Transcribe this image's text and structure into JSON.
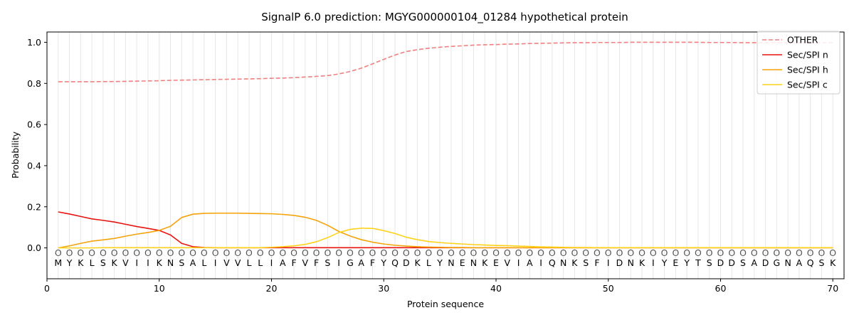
{
  "chart_data": {
    "type": "line",
    "title": "SignalP 6.0 prediction: MGYG000000104_01284 hypothetical protein",
    "xlabel": "Protein sequence",
    "ylabel": "Probability",
    "xlim": [
      0,
      71
    ],
    "ylim": [
      -0.15,
      1.05
    ],
    "x_ticks": [
      0,
      10,
      20,
      30,
      40,
      50,
      60,
      70
    ],
    "y_ticks": [
      0.0,
      0.2,
      0.4,
      0.6,
      0.8,
      1.0
    ],
    "x_tick_labels": [
      "0",
      "10",
      "20",
      "30",
      "40",
      "50",
      "60",
      "70"
    ],
    "y_tick_labels": [
      "0.0",
      "0.2",
      "0.4",
      "0.6",
      "0.8",
      "1.0"
    ],
    "grid": "vertical lines at each residue",
    "legend_position": "top-right",
    "sequence": [
      "M",
      "Y",
      "K",
      "L",
      "S",
      "K",
      "V",
      "I",
      "I",
      "K",
      "N",
      "S",
      "A",
      "L",
      "I",
      "V",
      "V",
      "L",
      "L",
      "I",
      "A",
      "F",
      "V",
      "F",
      "S",
      "I",
      "G",
      "A",
      "F",
      "Y",
      "Q",
      "D",
      "K",
      "L",
      "Y",
      "N",
      "E",
      "N",
      "K",
      "E",
      "V",
      "I",
      "A",
      "I",
      "Q",
      "N",
      "K",
      "S",
      "F",
      "I",
      "D",
      "N",
      "K",
      "I",
      "Y",
      "E",
      "Y",
      "T",
      "S",
      "D",
      "D",
      "S",
      "A",
      "D",
      "G",
      "N",
      "A",
      "Q",
      "S",
      "K"
    ],
    "predicted_labels": [
      "O",
      "O",
      "O",
      "O",
      "O",
      "O",
      "O",
      "O",
      "O",
      "O",
      "O",
      "O",
      "O",
      "O",
      "O",
      "O",
      "O",
      "O",
      "O",
      "O",
      "O",
      "O",
      "O",
      "O",
      "O",
      "O",
      "O",
      "O",
      "O",
      "O",
      "O",
      "O",
      "O",
      "O",
      "O",
      "O",
      "O",
      "O",
      "O",
      "O",
      "O",
      "O",
      "O",
      "O",
      "O",
      "O",
      "O",
      "O",
      "O",
      "O",
      "O",
      "O",
      "O",
      "O",
      "O",
      "O",
      "O",
      "O",
      "O",
      "O",
      "O",
      "O",
      "O",
      "O",
      "O",
      "O",
      "O",
      "O",
      "O",
      "O"
    ],
    "series": [
      {
        "name": "OTHER",
        "color": "#f08080",
        "dashed": true,
        "values": [
          0.808,
          0.808,
          0.808,
          0.808,
          0.809,
          0.809,
          0.81,
          0.811,
          0.812,
          0.813,
          0.815,
          0.816,
          0.817,
          0.818,
          0.819,
          0.82,
          0.821,
          0.822,
          0.823,
          0.825,
          0.826,
          0.828,
          0.831,
          0.834,
          0.838,
          0.846,
          0.858,
          0.874,
          0.895,
          0.917,
          0.938,
          0.955,
          0.964,
          0.971,
          0.976,
          0.98,
          0.983,
          0.986,
          0.988,
          0.989,
          0.991,
          0.992,
          0.994,
          0.995,
          0.996,
          0.997,
          0.998,
          0.998,
          0.999,
          0.999,
          0.999,
          1.0,
          1.0,
          1.0,
          1.0,
          1.0,
          1.0,
          1.0,
          0.999,
          0.999,
          0.999,
          0.998,
          0.998,
          0.998,
          0.998,
          0.998,
          0.998,
          0.998,
          0.998,
          0.998
        ]
      },
      {
        "name": "Sec/SPI n",
        "color": "#e8140f",
        "dashed": false,
        "values": [
          0.175,
          0.165,
          0.153,
          0.141,
          0.134,
          0.126,
          0.115,
          0.104,
          0.095,
          0.085,
          0.063,
          0.022,
          0.006,
          0.002,
          0.001,
          0.001,
          0.001,
          0.001,
          0.001,
          0.001,
          0.001,
          0.001,
          0.001,
          0.001,
          0.001,
          0.001,
          0.001,
          0.001,
          0.001,
          0.001,
          0.001,
          0.001,
          0.001,
          0.001,
          0.001,
          0.001,
          0.001,
          0.001,
          0.001,
          0.001,
          0.001,
          0.001,
          0.001,
          0.001,
          0.001,
          0.001,
          0.001,
          0.001,
          0.001,
          0.001,
          0.001,
          0.001,
          0.001,
          0.001,
          0.001,
          0.001,
          0.001,
          0.001,
          0.001,
          0.001,
          0.001,
          0.001,
          0.001,
          0.001,
          0.001,
          0.001,
          0.001,
          0.001,
          0.001,
          0.001
        ]
      },
      {
        "name": "Sec/SPI h",
        "color": "#f5a30a",
        "dashed": false,
        "values": [
          0.0,
          0.01,
          0.022,
          0.033,
          0.039,
          0.046,
          0.057,
          0.067,
          0.075,
          0.085,
          0.105,
          0.148,
          0.164,
          0.168,
          0.169,
          0.169,
          0.169,
          0.168,
          0.167,
          0.166,
          0.163,
          0.158,
          0.149,
          0.134,
          0.11,
          0.08,
          0.058,
          0.04,
          0.028,
          0.019,
          0.013,
          0.009,
          0.006,
          0.004,
          0.003,
          0.002,
          0.002,
          0.001,
          0.001,
          0.001,
          0.001,
          0.001,
          0.001,
          0.001,
          0.001,
          0.001,
          0.001,
          0.001,
          0.001,
          0.001,
          0.001,
          0.001,
          0.001,
          0.001,
          0.001,
          0.001,
          0.001,
          0.001,
          0.001,
          0.001,
          0.001,
          0.001,
          0.001,
          0.001,
          0.001,
          0.001,
          0.001,
          0.001,
          0.001,
          0.001
        ]
      },
      {
        "name": "Sec/SPI c",
        "color": "#ffd21a",
        "dashed": false,
        "values": [
          0.0,
          0.0,
          0.0,
          0.0,
          0.001,
          0.001,
          0.001,
          0.001,
          0.001,
          0.001,
          0.001,
          0.001,
          0.001,
          0.001,
          0.001,
          0.001,
          0.001,
          0.001,
          0.001,
          0.003,
          0.006,
          0.01,
          0.017,
          0.03,
          0.05,
          0.075,
          0.09,
          0.096,
          0.095,
          0.084,
          0.07,
          0.052,
          0.04,
          0.031,
          0.026,
          0.022,
          0.019,
          0.016,
          0.014,
          0.012,
          0.011,
          0.009,
          0.007,
          0.005,
          0.004,
          0.003,
          0.002,
          0.002,
          0.001,
          0.001,
          0.001,
          0.001,
          0.001,
          0.001,
          0.001,
          0.001,
          0.001,
          0.001,
          0.001,
          0.001,
          0.001,
          0.001,
          0.001,
          0.001,
          0.001,
          0.001,
          0.001,
          0.001,
          0.001,
          0.001
        ]
      }
    ]
  }
}
